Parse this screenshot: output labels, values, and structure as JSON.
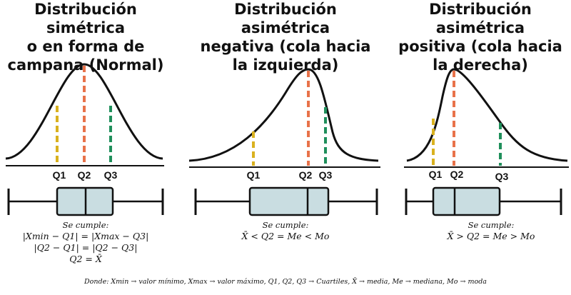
{
  "colors": {
    "q1": "#d9b11f",
    "q2": "#e8724a",
    "q3": "#1f8f5b",
    "box_fill": "#c9dde1",
    "stroke": "#111111"
  },
  "panels": [
    {
      "title_lines": [
        "Distribución simétrica",
        "o en forma de",
        "campana (Normal)"
      ],
      "quartile_labels": [
        "Q1",
        "Q2",
        "Q3"
      ],
      "condition_header": "Se cumple:",
      "condition_lines": [
        "|Xmin − Q1| = |Xmax − Q3|",
        "|Q2 − Q1| = |Q2 − Q3|",
        "Q2 = X̄"
      ]
    },
    {
      "title_lines": [
        "Distribución asimétrica",
        "negativa (cola hacia",
        "la izquierda)"
      ],
      "quartile_labels": [
        "Q1",
        "Q2",
        "Q3"
      ],
      "condition_header": "Se cumple:",
      "condition_lines": [
        "X̄ < Q2 = Me < Mo"
      ]
    },
    {
      "title_lines": [
        "Distribución asimétrica",
        "positiva (cola hacia",
        "la derecha)"
      ],
      "quartile_labels": [
        "Q1",
        "Q2",
        "Q3"
      ],
      "condition_header": "Se cumple:",
      "condition_lines": [
        "X̄ > Q2 = Me > Mo"
      ]
    }
  ],
  "footer": "Donde: Xmin → valor mínimo, Xmax → valor máximo, Q1, Q2, Q3 → Cuartiles, X̄ → media, Me → mediana, Mo → moda"
}
